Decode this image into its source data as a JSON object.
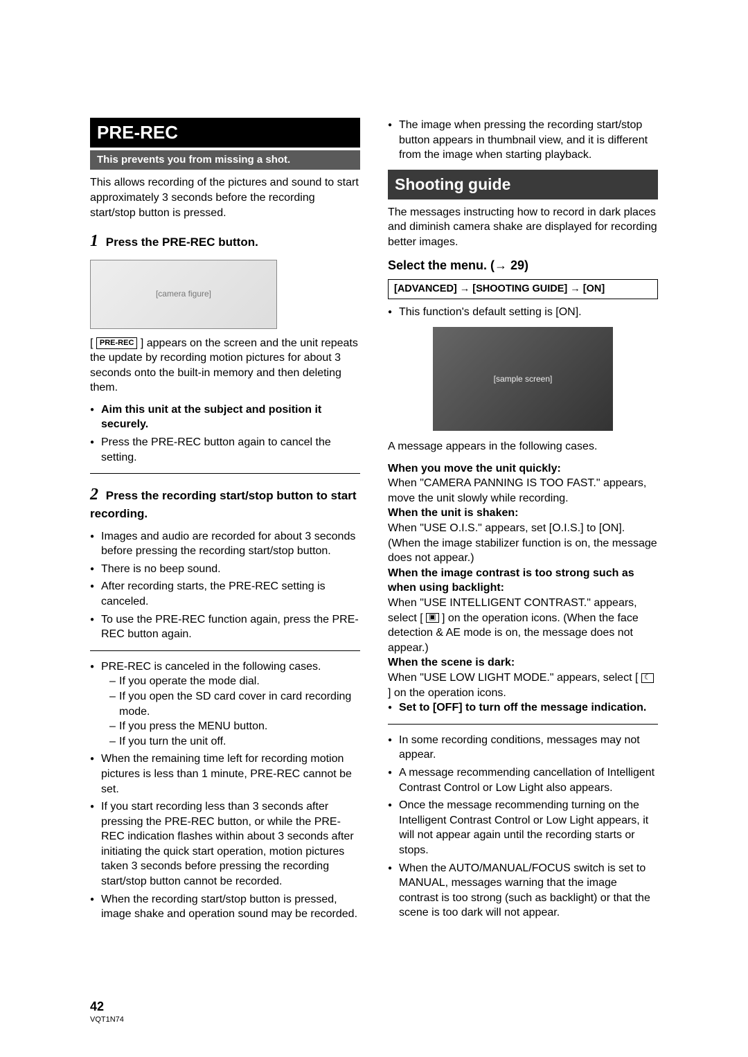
{
  "left": {
    "title": "PRE-REC",
    "subtitle": "This prevents you from missing a shot.",
    "intro": "This allows recording of the pictures and sound to start approximately 3 seconds before the recording start/stop button is pressed.",
    "step1_label": "Press the PRE-REC button.",
    "step1_num": "1",
    "figure_alt": "camera illustration",
    "prerec_badge": "PRE-REC",
    "step1_body": "] appears on the screen and the unit repeats the update by recording motion pictures for about 3 seconds onto the built-in memory and then deleting them.",
    "step1_bullets": [
      "Aim this unit at the subject and position it securely.",
      "Press the PRE-REC button again to cancel the setting."
    ],
    "step2_num": "2",
    "step2_label": "Press the recording start/stop button to start recording.",
    "step2_bullets": [
      "Images and audio are recorded for about 3 seconds before pressing the recording start/stop button.",
      "There is no beep sound.",
      "After recording starts, the PRE-REC setting is canceled.",
      "To use the PRE-REC function again, press the PRE-REC button again."
    ],
    "cancel_intro": "PRE-REC is canceled in the following cases.",
    "cancel_list": [
      "If you operate the mode dial.",
      "If you open the SD card cover in card recording mode.",
      "If you press the MENU button.",
      "If you turn the unit off."
    ],
    "notes": [
      "When the remaining time left for recording motion pictures is less than 1 minute, PRE-REC cannot be set.",
      "If you start recording less than 3 seconds after pressing the PRE-REC button, or while the PRE-REC indication flashes within about 3 seconds after initiating the quick start operation, motion pictures taken 3 seconds before pressing the recording start/stop button cannot be recorded.",
      "When the recording start/stop button is pressed, image shake and operation sound may be recorded."
    ]
  },
  "right": {
    "top_bullet": "The image when pressing the recording start/stop button appears in thumbnail view, and it is different from the image when starting playback.",
    "title": "Shooting guide",
    "intro": "The messages instructing how to record in dark places and diminish camera shake are displayed for recording better images.",
    "select_menu": "Select the menu. (→ 29)",
    "menu_path": "[ADVANCED] → [SHOOTING GUIDE] → [ON]",
    "default_note": "This function's default setting is [ON].",
    "photo_alt": "sample shooting guide screen",
    "cases_intro": "A message appears in the following cases.",
    "case1_h": "When you move the unit quickly:",
    "case1_b": "When \"CAMERA PANNING IS TOO FAST.\" appears, move the unit slowly while recording.",
    "case2_h": "When the unit is shaken:",
    "case2_b": "When \"USE O.I.S.\" appears, set [O.I.S.] to [ON]. (When the image stabilizer function is on, the message does not appear.)",
    "case3_h": "When the image contrast is too strong such as when using backlight:",
    "case3_b1": "When \"USE INTELLIGENT CONTRAST.\" appears, select [",
    "case3_b2": "] on the operation icons. (When the face detection & AE mode is on, the message does not appear.)",
    "case4_h": "When the scene is dark:",
    "case4_b1": "When \"USE LOW LIGHT MODE.\" appears, select [",
    "case4_b2": "] on the operation icons.",
    "off_note": "Set to [OFF] to turn off the message indication.",
    "post_notes": [
      "In some recording conditions, messages may not appear.",
      "A message recommending cancellation of Intelligent Contrast Control or Low Light also appears.",
      "Once the message recommending turning on the Intelligent Contrast Control or Low Light appears, it will not appear again until the recording starts or stops.",
      "When the AUTO/MANUAL/FOCUS switch is set to MANUAL, messages warning that the image contrast is too strong (such as backlight) or that the scene is too dark will not appear."
    ]
  },
  "footer": {
    "page": "42",
    "docid": "VQT1N74"
  }
}
